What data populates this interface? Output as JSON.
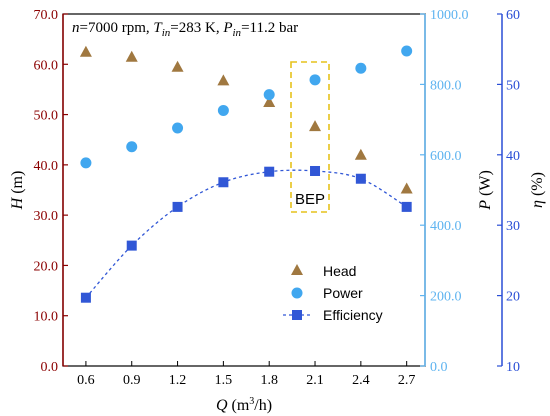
{
  "chart_data": {
    "type": "scatter",
    "subtitle": {
      "n": "n",
      "n_val": "=7000 rpm, ",
      "T": "T",
      "T_sub": "in",
      "T_val": "=283 K, ",
      "P": "P",
      "P_sub": "in",
      "P_val": "=11.2 bar"
    },
    "x": {
      "label_var": "Q",
      "label_unit": " (m",
      "label_sup": "3",
      "label_end": "/h)",
      "ticks": [
        "0.6",
        "0.9",
        "1.2",
        "1.5",
        "1.8",
        "2.1",
        "2.4",
        "2.7"
      ],
      "range": [
        0.45,
        2.82
      ]
    },
    "y_left": {
      "label_var": "H",
      "label_unit": " (m)",
      "ticks": [
        "0.0",
        "10.0",
        "20.0",
        "30.0",
        "40.0",
        "50.0",
        "60.0",
        "70.0"
      ],
      "range": [
        0,
        70
      ],
      "color": "#8b0000"
    },
    "y_right1": {
      "label_var": "P",
      "label_unit": " (W)",
      "ticks": [
        "0.0",
        "200.0",
        "400.0",
        "600.0",
        "800.0",
        "1000.0"
      ],
      "range": [
        0,
        1000
      ],
      "color": "#5fb4f0"
    },
    "y_right2": {
      "label_var": "η",
      "label_unit": " (%)",
      "ticks": [
        "10",
        "20",
        "30",
        "40",
        "50",
        "60"
      ],
      "range": [
        10,
        60
      ],
      "color": "#2a4fd6"
    },
    "series": [
      {
        "name": "Head",
        "axis": "left",
        "marker": "triangle",
        "color": "#a07840",
        "x": [
          0.6,
          0.9,
          1.2,
          1.5,
          1.8,
          2.1,
          2.4,
          2.7
        ],
        "y": [
          62.5,
          61.5,
          59.5,
          56.8,
          52.5,
          47.7,
          42.0,
          35.3
        ]
      },
      {
        "name": "Power",
        "axis": "right1",
        "marker": "circle",
        "color": "#41a7ef",
        "x": [
          0.6,
          0.9,
          1.2,
          1.5,
          1.8,
          2.1,
          2.4,
          2.7
        ],
        "y": [
          577,
          623,
          676,
          726,
          771,
          813,
          846,
          895
        ]
      },
      {
        "name": "Efficiency",
        "axis": "right2",
        "marker": "square",
        "color": "#3157d6",
        "line": "dashed",
        "x": [
          0.6,
          0.9,
          1.2,
          1.5,
          1.8,
          2.1,
          2.4,
          2.7
        ],
        "y": [
          19.7,
          27.1,
          32.6,
          36.1,
          37.6,
          37.7,
          36.6,
          32.6
        ]
      }
    ],
    "annotations": [
      {
        "text": "BEP",
        "color": "#e6c21c"
      }
    ],
    "legend_position": "bottom-right",
    "grid": false
  }
}
